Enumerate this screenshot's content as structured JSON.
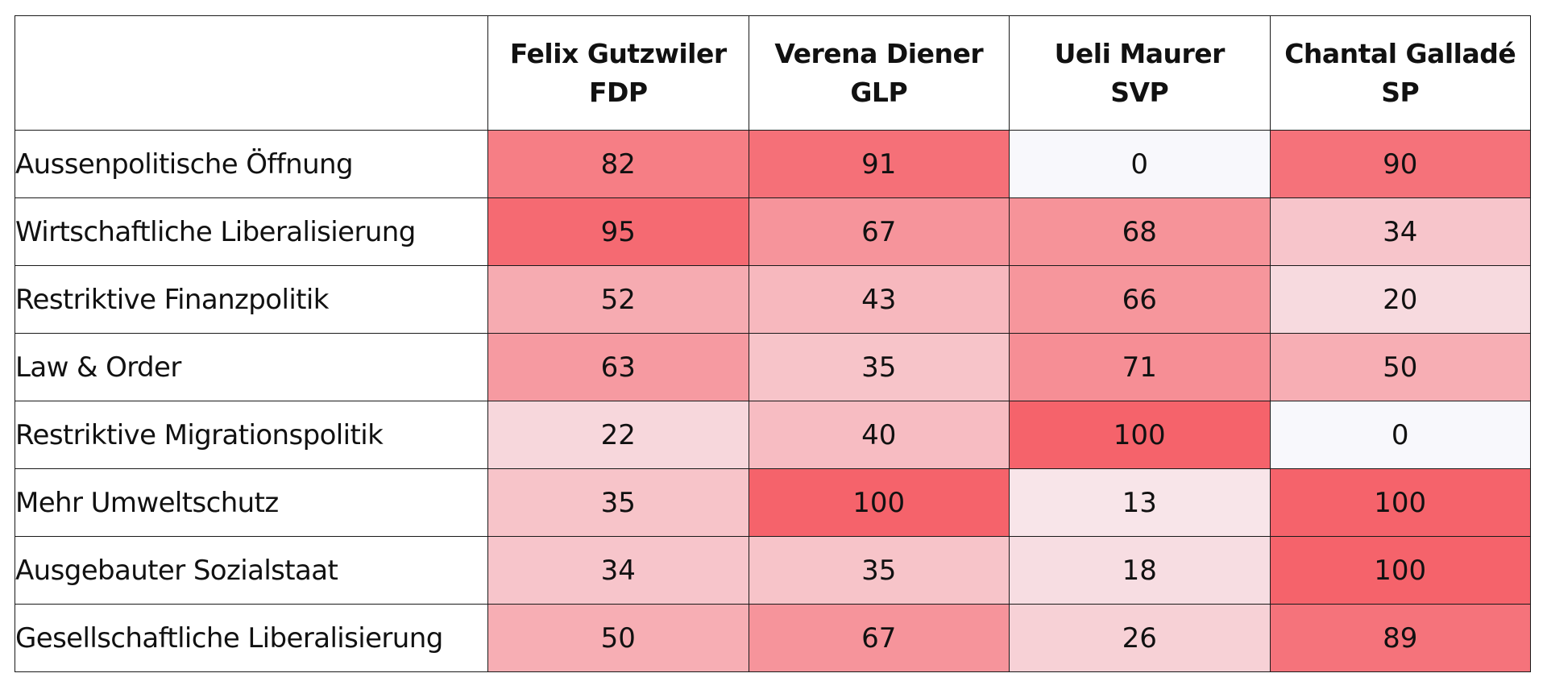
{
  "chart_data": {
    "type": "heatmap",
    "columns": [
      {
        "name": "Felix Gutzwiler",
        "party": "FDP"
      },
      {
        "name": "Verena Diener",
        "party": "GLP"
      },
      {
        "name": "Ueli Maurer",
        "party": "SVP"
      },
      {
        "name": "Chantal Galladé",
        "party": "SP"
      }
    ],
    "rows": [
      {
        "label": "Aussenpolitische Öffnung",
        "values": [
          82,
          91,
          0,
          90
        ]
      },
      {
        "label": "Wirtschaftliche Liberalisierung",
        "values": [
          95,
          67,
          68,
          34
        ]
      },
      {
        "label": "Restriktive Finanzpolitik",
        "values": [
          52,
          43,
          66,
          20
        ]
      },
      {
        "label": "Law & Order",
        "values": [
          63,
          35,
          71,
          50
        ]
      },
      {
        "label": "Restriktive Migrationspolitik",
        "values": [
          22,
          40,
          100,
          0
        ]
      },
      {
        "label": "Mehr Umweltschutz",
        "values": [
          35,
          100,
          13,
          100
        ]
      },
      {
        "label": "Ausgebauter Sozialstaat",
        "values": [
          34,
          35,
          18,
          100
        ]
      },
      {
        "label": "Gesellschaftliche Liberalisierung",
        "values": [
          50,
          67,
          26,
          89
        ]
      }
    ],
    "value_range": [
      0,
      100
    ],
    "color_scale": {
      "low": "#f8f8fc",
      "high": "#f5636b"
    }
  }
}
